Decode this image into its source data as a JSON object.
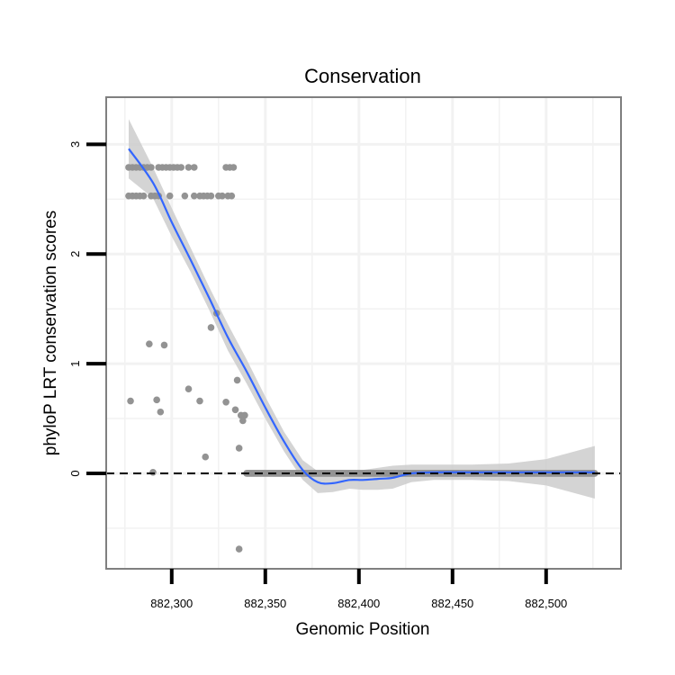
{
  "chart_data": {
    "type": "scatter",
    "title": "Conservation",
    "xlabel": "Genomic Position",
    "ylabel": "phyloP LRT conservation scores",
    "xlim": [
      882265,
      882540
    ],
    "ylim": [
      -0.87,
      3.43
    ],
    "x_ticks": [
      882300,
      882350,
      882400,
      882450,
      882500
    ],
    "x_tick_labels": [
      "882,300",
      "882,350",
      "882,400",
      "882,450",
      "882,500"
    ],
    "y_ticks": [
      0,
      1,
      2,
      3
    ],
    "y_tick_labels": [
      "0",
      "1",
      "2",
      "3"
    ],
    "reference_line": {
      "y": 0,
      "style": "dashed"
    },
    "grid": true,
    "series": [
      {
        "name": "points",
        "kind": "scatter",
        "x": [
          882277,
          882279,
          882281,
          882283,
          882285,
          882287,
          882289,
          882293,
          882295,
          882297,
          882299,
          882301,
          882303,
          882305,
          882309,
          882312,
          882329,
          882331,
          882333,
          882277,
          882279,
          882281,
          882283,
          882285,
          882289,
          882291,
          882293,
          882299,
          882307,
          882312,
          882315,
          882317,
          882319,
          882321,
          882325,
          882327,
          882330,
          882332,
          882278,
          882288,
          882296,
          882324,
          882321,
          882309,
          882315,
          882292,
          882294,
          882290,
          882318,
          882335,
          882329,
          882337,
          882339,
          882334,
          882338,
          882336,
          882336
        ],
        "y": [
          2.79,
          2.79,
          2.79,
          2.79,
          2.79,
          2.79,
          2.79,
          2.79,
          2.79,
          2.79,
          2.79,
          2.79,
          2.79,
          2.79,
          2.79,
          2.79,
          2.79,
          2.79,
          2.79,
          2.53,
          2.53,
          2.53,
          2.53,
          2.53,
          2.53,
          2.53,
          2.53,
          2.53,
          2.53,
          2.53,
          2.53,
          2.53,
          2.53,
          2.53,
          2.53,
          2.53,
          2.53,
          2.53,
          0.66,
          1.18,
          1.17,
          1.46,
          1.33,
          0.77,
          0.66,
          0.67,
          0.56,
          0.01,
          0.15,
          0.85,
          0.65,
          0.53,
          0.53,
          0.58,
          0.48,
          0.23,
          -0.69
        ],
        "zero_run": {
          "from": 882340,
          "to": 882526,
          "y": 0
        }
      },
      {
        "name": "loess fit",
        "kind": "smooth",
        "x": [
          882277,
          882290,
          882300,
          882310,
          882320,
          882330,
          882340,
          882350,
          882360,
          882370,
          882378,
          882386,
          882395,
          882402,
          882410,
          882418,
          882428,
          882440,
          882460,
          882480,
          882500,
          882526
        ],
        "y": [
          2.96,
          2.65,
          2.29,
          1.95,
          1.6,
          1.24,
          0.93,
          0.6,
          0.29,
          0.03,
          -0.08,
          -0.09,
          -0.06,
          -0.06,
          -0.05,
          -0.04,
          0.0,
          0.01,
          0.01,
          0.01,
          0.01,
          0.01
        ],
        "ci_upper": [
          3.23,
          2.79,
          2.42,
          2.06,
          1.7,
          1.36,
          1.04,
          0.7,
          0.38,
          0.12,
          0.02,
          -0.01,
          0.02,
          0.03,
          0.05,
          0.07,
          0.08,
          0.08,
          0.08,
          0.09,
          0.13,
          0.25
        ],
        "ci_lower": [
          2.69,
          2.51,
          2.16,
          1.84,
          1.49,
          1.12,
          0.82,
          0.5,
          0.2,
          -0.06,
          -0.18,
          -0.17,
          -0.14,
          -0.15,
          -0.15,
          -0.14,
          -0.08,
          -0.06,
          -0.06,
          -0.07,
          -0.11,
          -0.23
        ]
      }
    ],
    "colors": {
      "points": "#939393",
      "line": "#3366ff",
      "ribbon": "#cccccc",
      "panel_border": "#7f7f7f",
      "grid": "#f2f2f2"
    }
  }
}
